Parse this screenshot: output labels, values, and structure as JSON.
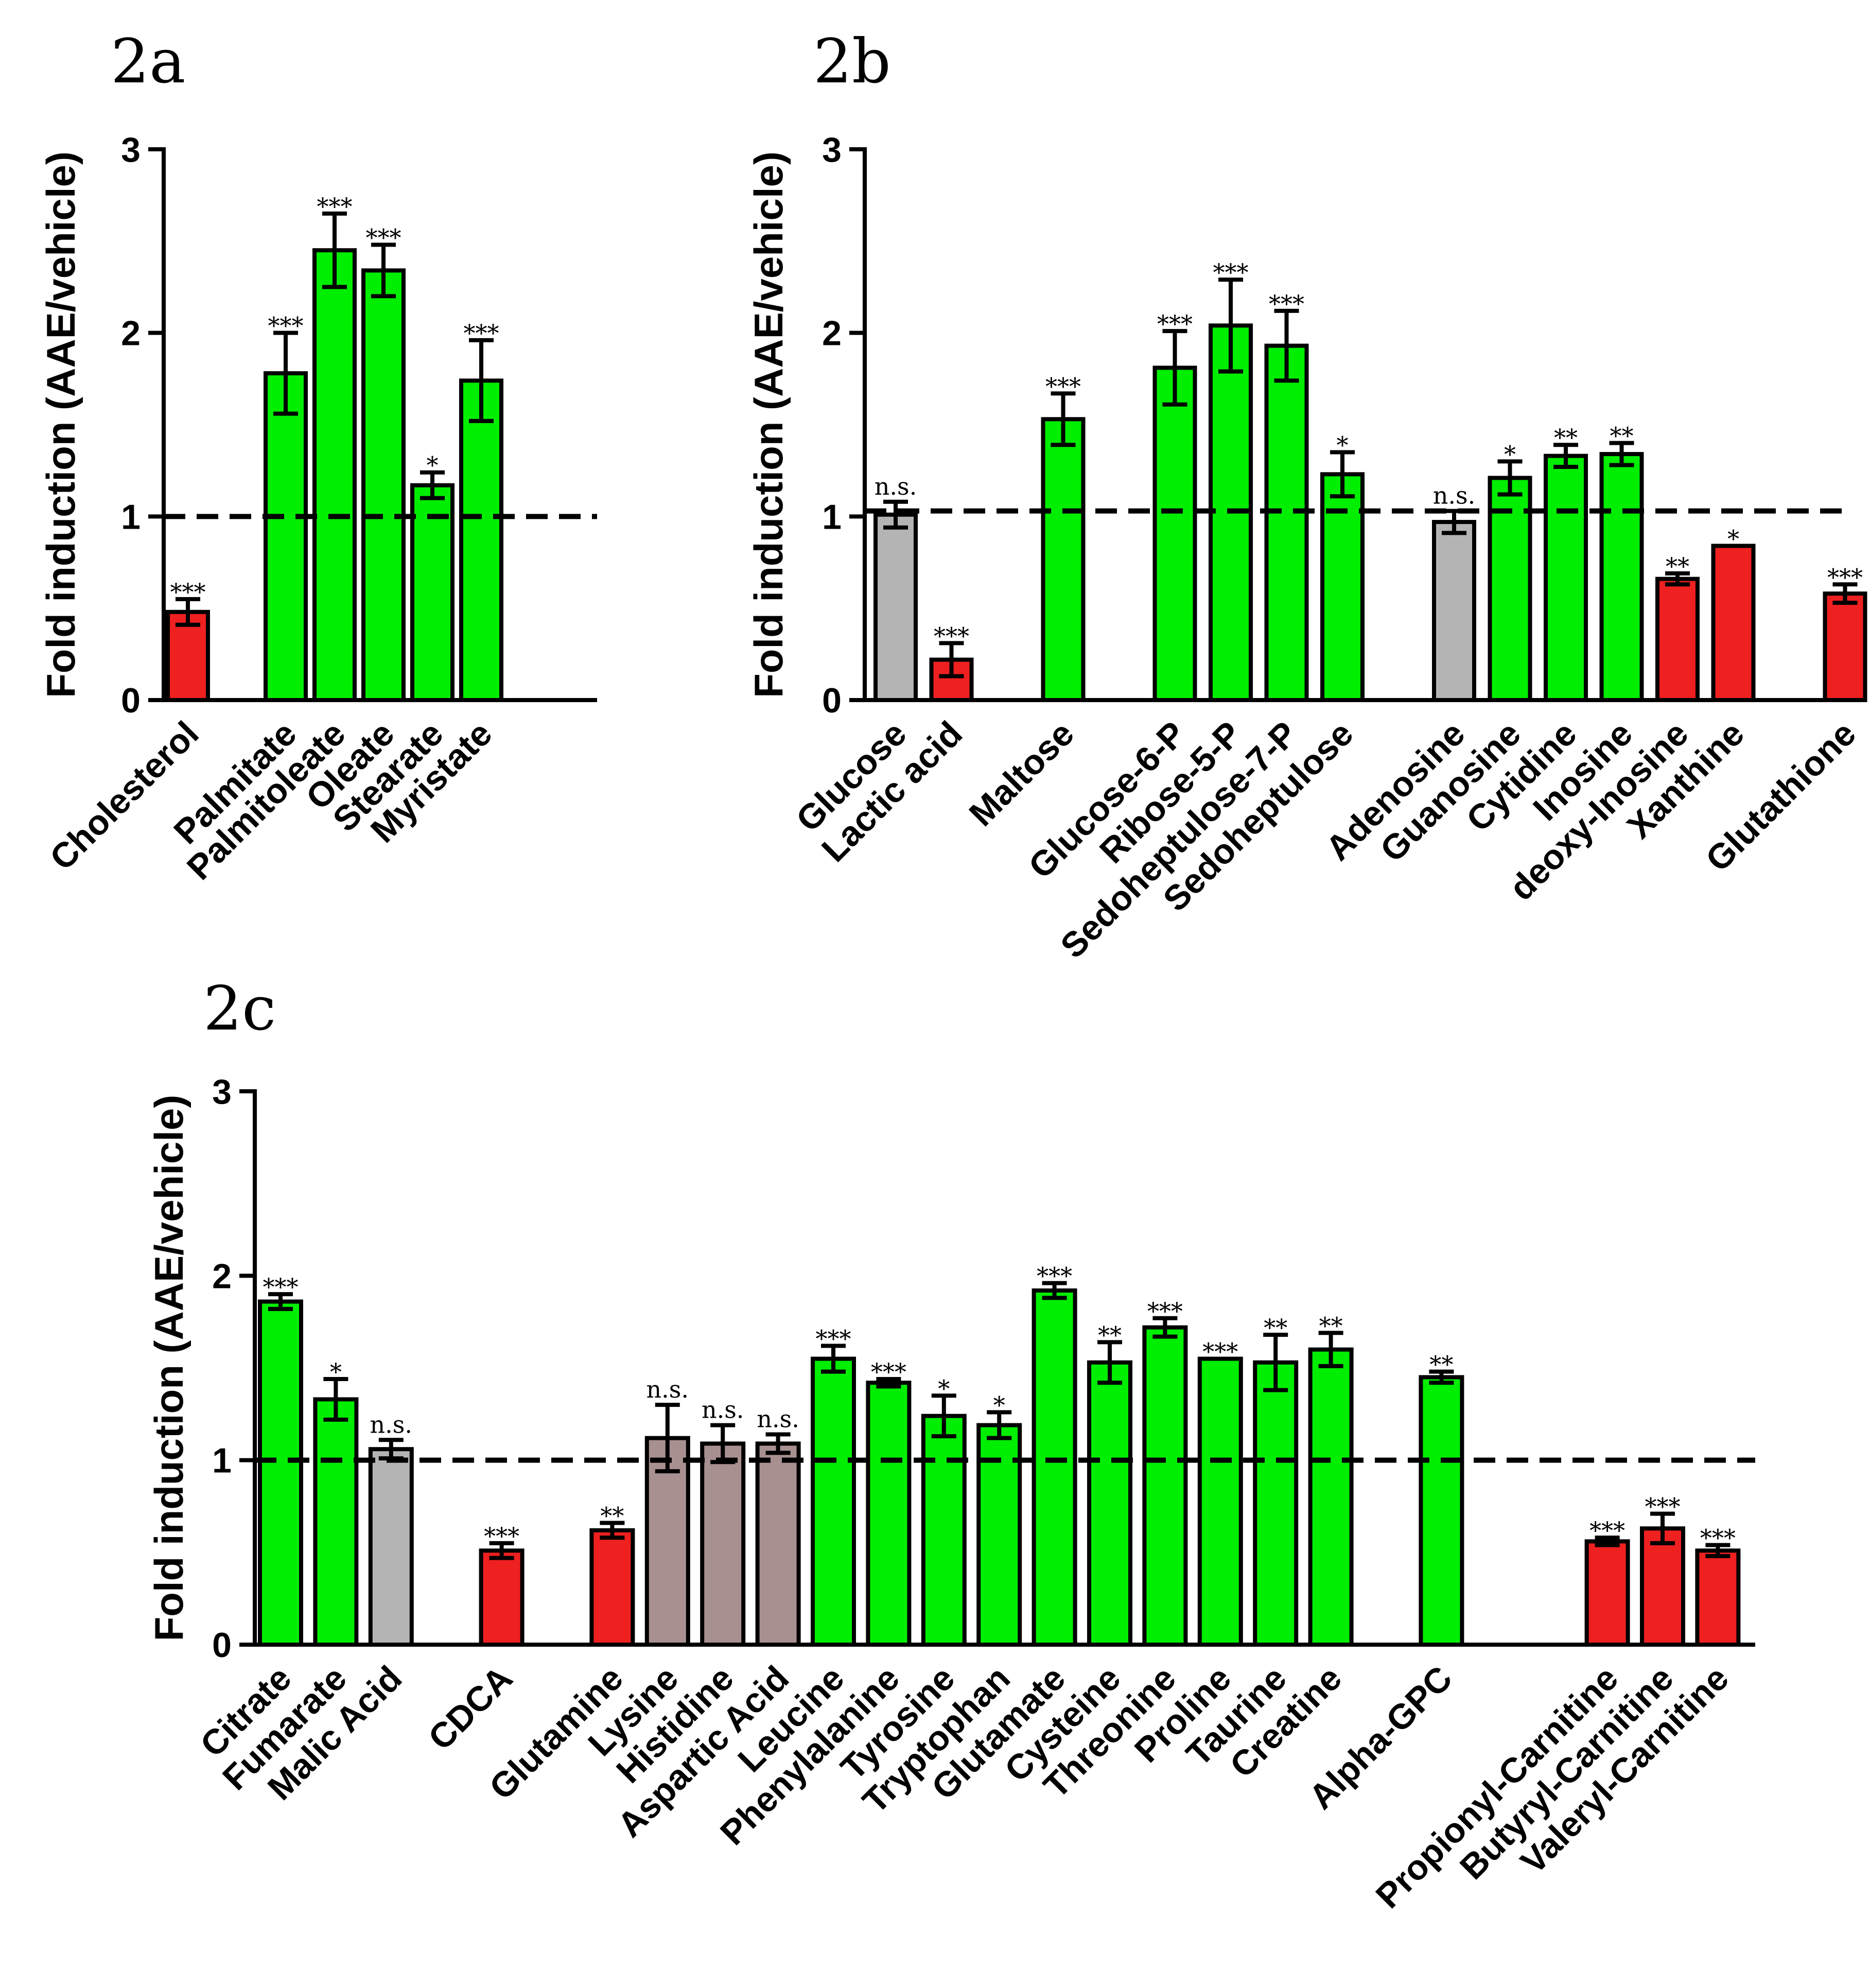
{
  "colors": {
    "up": "#00ee00",
    "down": "#ee2020",
    "ns": "#b4b4b4",
    "ns_brown": "#a89090",
    "axis": "#000000"
  },
  "chart_data": [
    {
      "panel": "2a",
      "type": "bar",
      "ylabel": "Fold induction (AAE/vehicle)",
      "ylim": [
        0,
        3
      ],
      "yticks": [
        "0",
        "1",
        "2",
        "3"
      ],
      "reference_line": 1,
      "bars": [
        {
          "label": "Cholesterol",
          "value": 0.48,
          "err": 0.07,
          "color": "down",
          "sig": "***"
        },
        {
          "label": "",
          "value": null
        },
        {
          "label": "Palmitate",
          "value": 1.78,
          "err": 0.22,
          "color": "up",
          "sig": "***"
        },
        {
          "label": "Palmitoleate",
          "value": 2.45,
          "err": 0.2,
          "color": "up",
          "sig": "***"
        },
        {
          "label": "Oleate",
          "value": 2.34,
          "err": 0.14,
          "color": "up",
          "sig": "***"
        },
        {
          "label": "Stearate",
          "value": 1.17,
          "err": 0.07,
          "color": "up",
          "sig": "*"
        },
        {
          "label": "Myristate",
          "value": 1.74,
          "err": 0.22,
          "color": "up",
          "sig": "***"
        }
      ]
    },
    {
      "panel": "2b",
      "type": "bar",
      "ylabel": "Fold induction (AAE/vehicle)",
      "ylim": [
        0,
        3
      ],
      "yticks": [
        "0",
        "1",
        "2",
        "3"
      ],
      "reference_line": 1.03,
      "bars": [
        {
          "label": "Glucose",
          "value": 1.01,
          "err": 0.07,
          "color": "ns",
          "sig": "n.s."
        },
        {
          "label": "Lactic acid",
          "value": 0.22,
          "err": 0.09,
          "color": "down",
          "sig": "***"
        },
        {
          "label": "",
          "value": null
        },
        {
          "label": "Maltose",
          "value": 1.53,
          "err": 0.14,
          "color": "up",
          "sig": "***"
        },
        {
          "label": "",
          "value": null
        },
        {
          "label": "Glucose-6-P",
          "value": 1.81,
          "err": 0.2,
          "color": "up",
          "sig": "***"
        },
        {
          "label": "Ribose-5-P",
          "value": 2.04,
          "err": 0.25,
          "color": "up",
          "sig": "***"
        },
        {
          "label": "Sedoheptulose-7-P",
          "value": 1.93,
          "err": 0.19,
          "color": "up",
          "sig": "***"
        },
        {
          "label": "Sedoheptulose",
          "value": 1.23,
          "err": 0.12,
          "color": "up",
          "sig": "*"
        },
        {
          "label": "",
          "value": null
        },
        {
          "label": "Adenosine",
          "value": 0.97,
          "err": 0.06,
          "color": "ns",
          "sig": "n.s."
        },
        {
          "label": "Guanosine",
          "value": 1.21,
          "err": 0.09,
          "color": "up",
          "sig": "*"
        },
        {
          "label": "Cytidine",
          "value": 1.33,
          "err": 0.06,
          "color": "up",
          "sig": "**"
        },
        {
          "label": "Inosine",
          "value": 1.34,
          "err": 0.06,
          "color": "up",
          "sig": "**"
        },
        {
          "label": "deoxy-Inosine",
          "value": 0.66,
          "err": 0.03,
          "color": "down",
          "sig": "**"
        },
        {
          "label": "Xanthine",
          "value": 0.84,
          "err": 0.0,
          "color": "down",
          "sig": "*"
        },
        {
          "label": "",
          "value": null
        },
        {
          "label": "Glutathione",
          "value": 0.58,
          "err": 0.05,
          "color": "down",
          "sig": "***"
        }
      ]
    },
    {
      "panel": "2c",
      "type": "bar",
      "ylabel": "Fold induction (AAE/vehicle)",
      "ylim": [
        0,
        3
      ],
      "yticks": [
        "0",
        "1",
        "2",
        "3"
      ],
      "reference_line": 1,
      "bars": [
        {
          "label": "Citrate",
          "value": 1.86,
          "err": 0.04,
          "color": "up",
          "sig": "***"
        },
        {
          "label": "Fumarate",
          "value": 1.33,
          "err": 0.11,
          "color": "up",
          "sig": "*"
        },
        {
          "label": "Malic Acid",
          "value": 1.06,
          "err": 0.05,
          "color": "ns",
          "sig": "n.s."
        },
        {
          "label": "",
          "value": null
        },
        {
          "label": "CDCA",
          "value": 0.51,
          "err": 0.04,
          "color": "down",
          "sig": "***"
        },
        {
          "label": "",
          "value": null
        },
        {
          "label": "Glutamine",
          "value": 0.62,
          "err": 0.04,
          "color": "down",
          "sig": "**"
        },
        {
          "label": "Lysine",
          "value": 1.12,
          "err": 0.18,
          "color": "ns_brown",
          "sig": "n.s."
        },
        {
          "label": "Histidine",
          "value": 1.09,
          "err": 0.1,
          "color": "ns_brown",
          "sig": "n.s."
        },
        {
          "label": "Aspartic Acid",
          "value": 1.09,
          "err": 0.05,
          "color": "ns_brown",
          "sig": "n.s."
        },
        {
          "label": "Leucine",
          "value": 1.55,
          "err": 0.07,
          "color": "up",
          "sig": "***"
        },
        {
          "label": "Phenylalanine",
          "value": 1.42,
          "err": 0.02,
          "color": "up",
          "sig": "***"
        },
        {
          "label": "Tyrosine",
          "value": 1.24,
          "err": 0.11,
          "color": "up",
          "sig": "*"
        },
        {
          "label": "Tryptophan",
          "value": 1.19,
          "err": 0.07,
          "color": "up",
          "sig": "*"
        },
        {
          "label": "Glutamate",
          "value": 1.92,
          "err": 0.04,
          "color": "up",
          "sig": "***"
        },
        {
          "label": "Cysteine",
          "value": 1.53,
          "err": 0.11,
          "color": "up",
          "sig": "**"
        },
        {
          "label": "Threonine",
          "value": 1.72,
          "err": 0.05,
          "color": "up",
          "sig": "***"
        },
        {
          "label": "Proline",
          "value": 1.55,
          "err": 0.0,
          "color": "up",
          "sig": "***"
        },
        {
          "label": "Taurine",
          "value": 1.53,
          "err": 0.15,
          "color": "up",
          "sig": "**"
        },
        {
          "label": "Creatine",
          "value": 1.6,
          "err": 0.09,
          "color": "up",
          "sig": "**"
        },
        {
          "label": "",
          "value": null
        },
        {
          "label": "Alpha-GPC",
          "value": 1.45,
          "err": 0.03,
          "color": "up",
          "sig": "**"
        },
        {
          "label": "",
          "value": null
        },
        {
          "label": "",
          "value": null
        },
        {
          "label": "Propionyl-Carnitine",
          "value": 0.56,
          "err": 0.02,
          "color": "down",
          "sig": "***"
        },
        {
          "label": "Butyryl-Carnitine",
          "value": 0.63,
          "err": 0.08,
          "color": "down",
          "sig": "***"
        },
        {
          "label": "Valeryl-Carnitine",
          "value": 0.51,
          "err": 0.03,
          "color": "down",
          "sig": "***"
        }
      ]
    }
  ]
}
